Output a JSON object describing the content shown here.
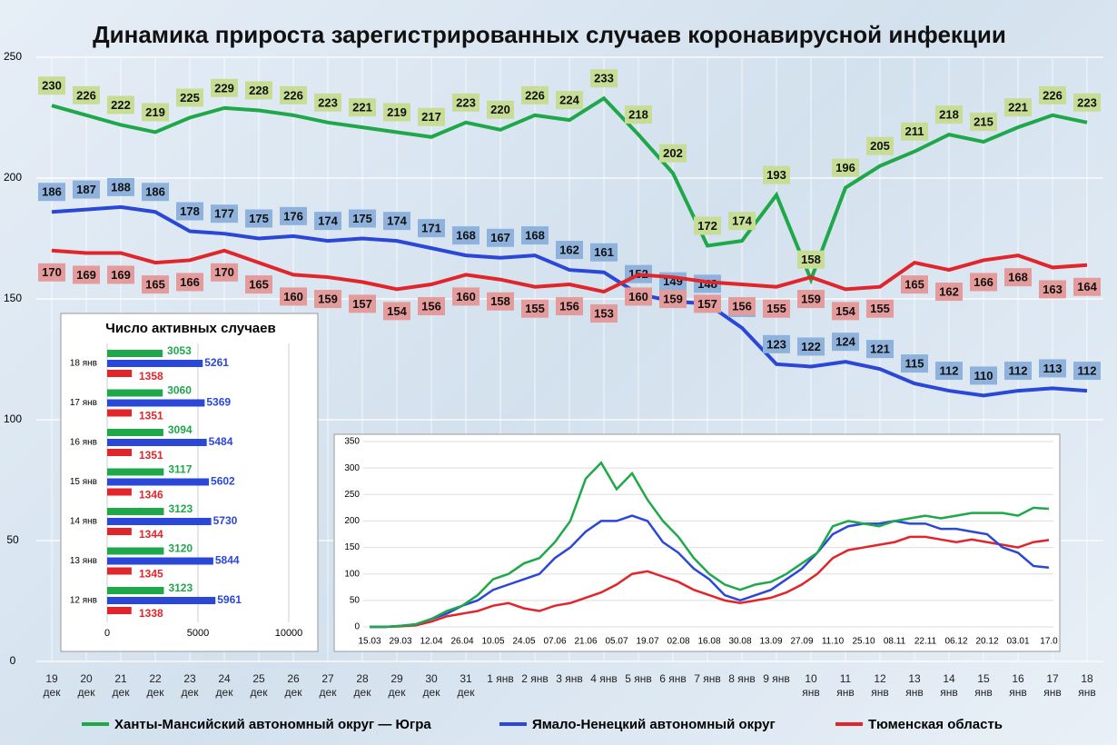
{
  "chart_data": [
    {
      "type": "line",
      "title": "Динамика прироста зарегистрированных случаев коронавирусной инфекции",
      "categories": [
        "19 дек",
        "20 дек",
        "21 дек",
        "22 дек",
        "23 дек",
        "24 дек",
        "25 дек",
        "26 дек",
        "27 дек",
        "28 дек",
        "29 дек",
        "30 дек",
        "31 дек",
        "1 янв",
        "2 янв",
        "3 янв",
        "4 янв",
        "5 янв",
        "6 янв",
        "7 янв",
        "8 янв",
        "9 янв",
        "10 янв",
        "11 янв",
        "12 янв",
        "13 янв",
        "14 янв",
        "15 янв",
        "16 янв",
        "17 янв",
        "18 янв"
      ],
      "series": [
        {
          "name": "Ханты-Мансийский автономный округ — Югра",
          "color": "#1fa84a",
          "label_color": "#c7dd95",
          "values": [
            230,
            226,
            222,
            219,
            225,
            229,
            228,
            226,
            223,
            221,
            219,
            217,
            223,
            220,
            226,
            224,
            233,
            218,
            202,
            172,
            174,
            193,
            158,
            196,
            205,
            211,
            218,
            215,
            221,
            226,
            223
          ]
        },
        {
          "name": "Ямало-Ненецкий автономный округ",
          "color": "#2b47d8",
          "label_color": "#8fb2dc",
          "values": [
            186,
            187,
            188,
            186,
            178,
            177,
            175,
            176,
            174,
            175,
            174,
            171,
            168,
            167,
            168,
            162,
            161,
            152,
            149,
            148,
            138,
            123,
            122,
            124,
            121,
            115,
            112,
            110,
            112,
            113,
            112
          ]
        },
        {
          "name": "Тюменская область",
          "color": "#e0262b",
          "label_color": "#e49b9b",
          "values": [
            170,
            169,
            169,
            165,
            166,
            170,
            165,
            160,
            159,
            157,
            154,
            156,
            160,
            158,
            155,
            156,
            153,
            160,
            159,
            157,
            156,
            155,
            159,
            154,
            155,
            165,
            162,
            166,
            168,
            163,
            164
          ]
        }
      ],
      "ylim": [
        0,
        250
      ],
      "yticks": [
        0,
        50,
        100,
        150,
        200,
        250
      ],
      "grid": true
    },
    {
      "type": "hbar",
      "title": "Число активных случаев",
      "categories": [
        "18 янв",
        "17 янв",
        "16 янв",
        "15 янв",
        "14 янв",
        "13 янв",
        "12 янв"
      ],
      "series": [
        {
          "color": "#1fa84a",
          "values": [
            3053,
            3060,
            3094,
            3117,
            3123,
            3120,
            3123
          ]
        },
        {
          "color": "#2b47d8",
          "values": [
            5261,
            5369,
            5484,
            5602,
            5730,
            5844,
            5961
          ]
        },
        {
          "color": "#e0262b",
          "values": [
            1358,
            1351,
            1351,
            1346,
            1344,
            1345,
            1338
          ]
        }
      ],
      "xlim": [
        0,
        10000
      ],
      "xticks": [
        0,
        5000,
        10000
      ],
      "grid": true
    },
    {
      "type": "line",
      "categories": [
        "15.03",
        null,
        "29.03",
        null,
        "12.04",
        null,
        "26.04",
        null,
        "10.05",
        null,
        "24.05",
        null,
        "07.06",
        null,
        "21.06",
        null,
        "05.07",
        null,
        "19.07",
        null,
        "02.08",
        null,
        "16.08",
        null,
        "30.08",
        null,
        "13.09",
        null,
        "27.09",
        null,
        "11.10",
        null,
        "25.10",
        null,
        "08.11",
        null,
        "22.11",
        null,
        "06.12",
        null,
        "20.12",
        null,
        "03.01",
        null,
        "17.0"
      ],
      "series": [
        {
          "color": "#1fa84a",
          "values": [
            0,
            0,
            2,
            5,
            15,
            30,
            40,
            60,
            90,
            100,
            120,
            130,
            160,
            200,
            280,
            310,
            260,
            290,
            240,
            200,
            170,
            130,
            100,
            80,
            70,
            80,
            85,
            100,
            120,
            140,
            190,
            200,
            195,
            190,
            200,
            205,
            210,
            205,
            210,
            215,
            215,
            215,
            210,
            225,
            223
          ]
        },
        {
          "color": "#2b47d8",
          "values": [
            0,
            0,
            2,
            5,
            15,
            25,
            40,
            50,
            70,
            80,
            90,
            100,
            130,
            150,
            180,
            200,
            200,
            210,
            200,
            160,
            140,
            110,
            90,
            60,
            50,
            60,
            70,
            90,
            110,
            140,
            175,
            190,
            195,
            195,
            200,
            195,
            195,
            185,
            185,
            180,
            175,
            150,
            140,
            115,
            112
          ]
        },
        {
          "color": "#e0262b",
          "values": [
            0,
            0,
            1,
            3,
            10,
            20,
            25,
            30,
            40,
            45,
            35,
            30,
            40,
            45,
            55,
            65,
            80,
            100,
            105,
            95,
            85,
            70,
            60,
            50,
            45,
            50,
            55,
            65,
            80,
            100,
            130,
            145,
            150,
            155,
            160,
            170,
            170,
            165,
            160,
            165,
            160,
            155,
            150,
            160,
            164
          ]
        }
      ],
      "ylim": [
        0,
        350
      ],
      "yticks": [
        0,
        50,
        100,
        150,
        200,
        250,
        300,
        350
      ],
      "grid": true
    }
  ]
}
